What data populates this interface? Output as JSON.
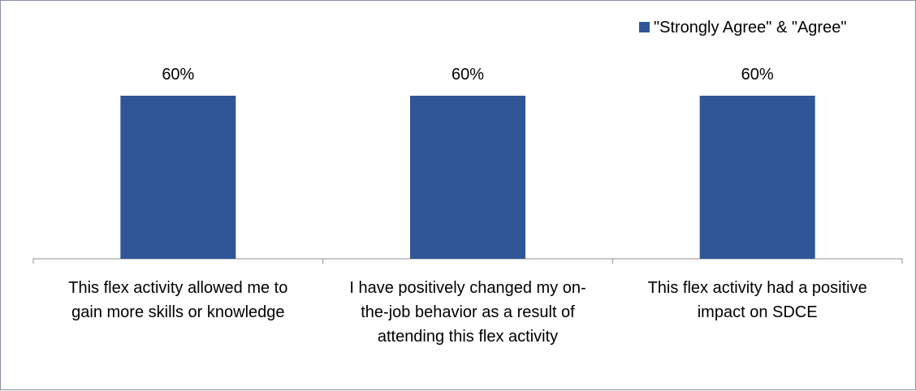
{
  "chart_data": {
    "type": "bar",
    "categories": [
      "This flex activity allowed me to gain more skills or knowledge",
      "I have positively changed my on-the-job behavior as a result of attending this flex activity",
      "This flex activity had a positive impact on SDCE"
    ],
    "category_lines": [
      [
        "This flex activity allowed me to",
        "gain more skills or knowledge"
      ],
      [
        "I have positively changed my on-",
        "the-job behavior as a result of",
        "attending this flex activity"
      ],
      [
        "This flex activity had a positive",
        "impact on SDCE"
      ]
    ],
    "series": [
      {
        "name": "\"Strongly Agree\" & \"Agree\"",
        "values": [
          60,
          60,
          60
        ],
        "color": "#2f5597"
      }
    ],
    "data_labels": [
      "60%",
      "60%",
      "60%"
    ],
    "ylim": [
      0,
      100
    ],
    "grid": false,
    "legend_position": "top-right",
    "title": "",
    "xlabel": "",
    "ylabel": ""
  }
}
